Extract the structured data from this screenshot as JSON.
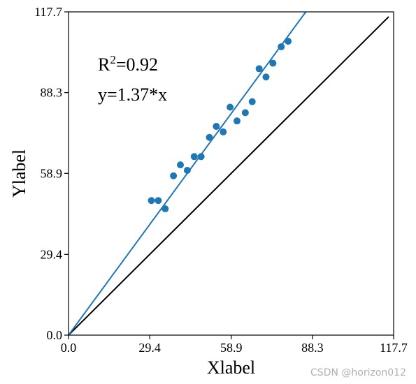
{
  "chart_data": {
    "type": "scatter",
    "xlabel": "Xlabel",
    "ylabel": "Ylabel",
    "xlim": [
      0.0,
      117.7
    ],
    "ylim": [
      0.0,
      117.7
    ],
    "xticks": [
      "0.0",
      "29.4",
      "58.9",
      "88.3",
      "117.7"
    ],
    "yticks": [
      "0.0",
      "29.4",
      "58.9",
      "88.3",
      "117.7"
    ],
    "annotations": {
      "r2_prefix": "R",
      "r2_sup": "2",
      "r2_value": "=0.92",
      "equation": "y=1.37*x"
    },
    "points": [
      {
        "x": 30.0,
        "y": 49.0
      },
      {
        "x": 32.5,
        "y": 49.0
      },
      {
        "x": 35.0,
        "y": 46.0
      },
      {
        "x": 38.0,
        "y": 58.0
      },
      {
        "x": 40.5,
        "y": 62.0
      },
      {
        "x": 43.0,
        "y": 60.0
      },
      {
        "x": 45.5,
        "y": 65.0
      },
      {
        "x": 48.0,
        "y": 65.0
      },
      {
        "x": 51.0,
        "y": 72.0
      },
      {
        "x": 53.5,
        "y": 76.0
      },
      {
        "x": 56.0,
        "y": 74.0
      },
      {
        "x": 58.5,
        "y": 83.0
      },
      {
        "x": 61.0,
        "y": 78.0
      },
      {
        "x": 64.0,
        "y": 81.0
      },
      {
        "x": 66.5,
        "y": 85.0
      },
      {
        "x": 69.0,
        "y": 97.0
      },
      {
        "x": 71.5,
        "y": 94.0
      },
      {
        "x": 74.0,
        "y": 99.0
      },
      {
        "x": 77.0,
        "y": 105.0
      },
      {
        "x": 79.5,
        "y": 107.0
      }
    ],
    "fit_line": {
      "slope": 1.37
    },
    "reference_line": {
      "slope": 1.0
    },
    "colors": {
      "points": "#1f77b4",
      "fit_line": "#1f77b4",
      "reference_line": "#000000",
      "axes": "#000000"
    }
  },
  "watermark": "CSDN @horizon012"
}
